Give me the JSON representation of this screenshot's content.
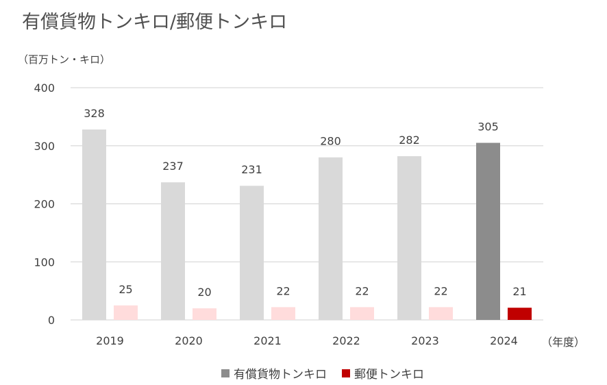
{
  "title": "有償貨物トンキロ/郵便トンキロ",
  "y_unit": "（百万トン・キロ）",
  "x_unit": "（年度）",
  "colors": {
    "cargo": "#d9d9d9",
    "cargo_highlight": "#8c8c8c",
    "mail": "#ffdcdc",
    "mail_highlight": "#c00000",
    "grid": "#d9d9d9",
    "legend_cargo": "#8c8c8c",
    "legend_mail": "#c00000"
  },
  "chart_data": {
    "type": "bar",
    "title": "有償貨物トンキロ/郵便トンキロ",
    "ylabel": "（百万トン・キロ）",
    "xlabel": "（年度）",
    "categories": [
      "2019",
      "2020",
      "2021",
      "2022",
      "2023",
      "2024"
    ],
    "series": [
      {
        "name": "有償貨物トンキロ",
        "values": [
          328,
          237,
          231,
          280,
          282,
          305
        ]
      },
      {
        "name": "郵便トンキロ",
        "values": [
          25,
          20,
          22,
          22,
          22,
          21
        ]
      }
    ],
    "highlight_category": "2024",
    "ylim": [
      0,
      400
    ],
    "yticks": [
      0,
      100,
      200,
      300,
      400
    ],
    "grid": true,
    "legend_position": "bottom"
  }
}
